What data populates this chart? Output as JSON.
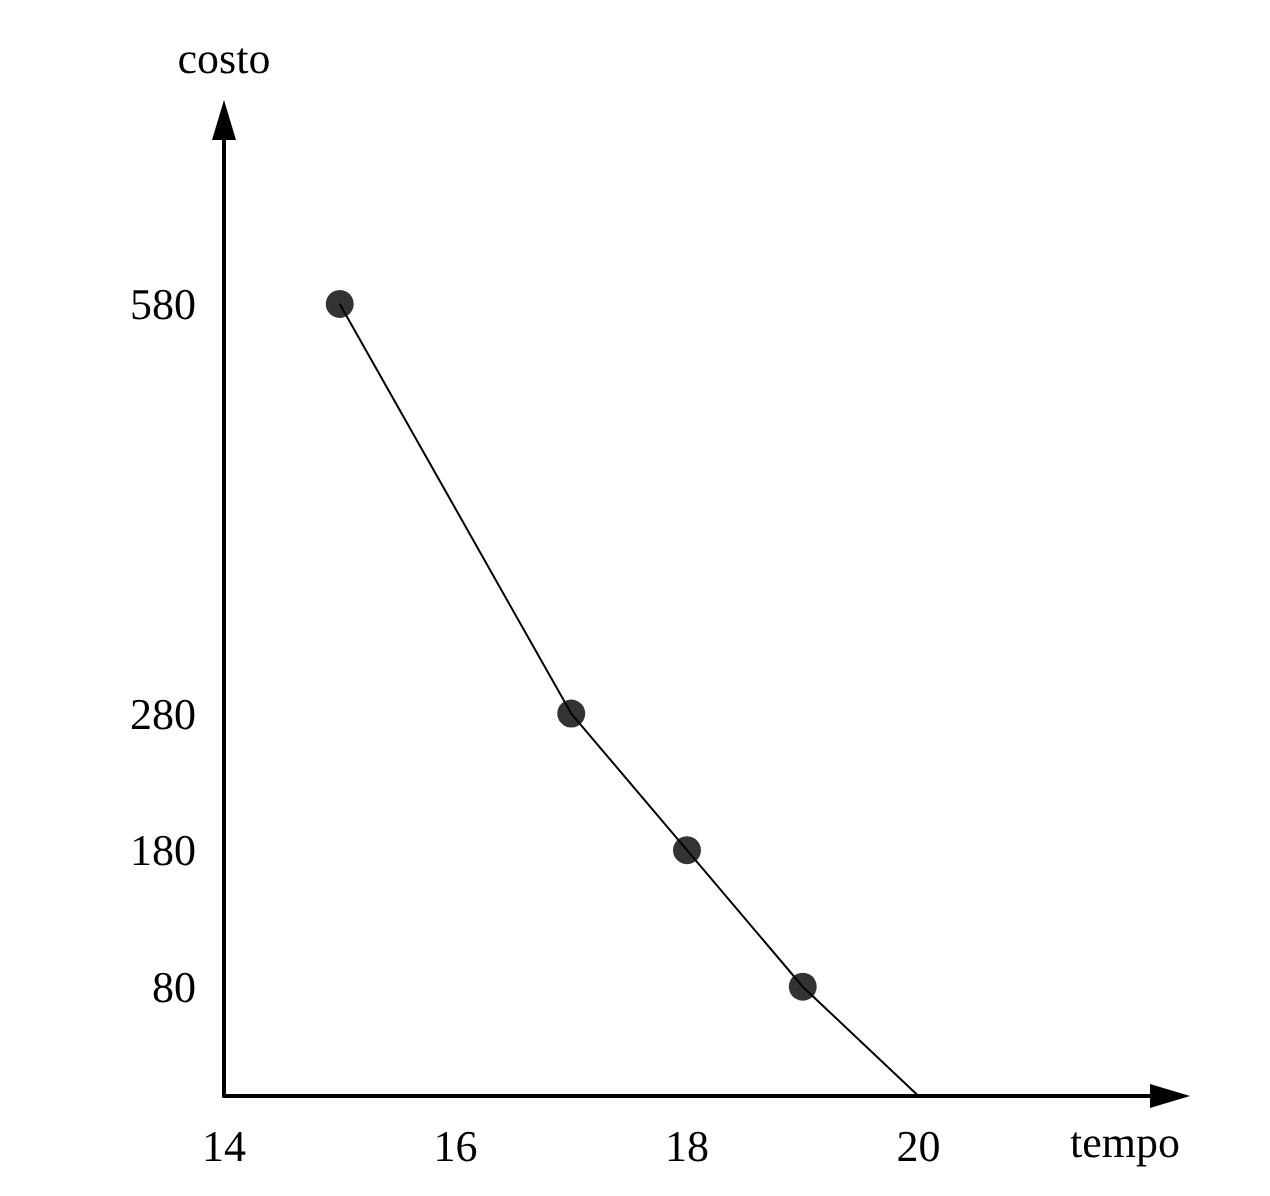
{
  "chart_data": {
    "type": "line",
    "xlabel": "tempo",
    "ylabel": "costo",
    "xlim": [
      14,
      22
    ],
    "xticks": [
      14,
      16,
      18,
      20
    ],
    "ylim": [
      0,
      700
    ],
    "yticks": [
      80,
      180,
      280,
      580
    ],
    "grid": false,
    "series": [
      {
        "color": "#000000",
        "marker": "none",
        "x": [
          15,
          17,
          18,
          19,
          20
        ],
        "values": [
          580,
          280,
          180,
          80,
          0
        ]
      },
      {
        "type": "scatter",
        "color": "#000000",
        "marker": "circle",
        "x": [
          15,
          17,
          18,
          19
        ],
        "values": [
          580,
          280,
          180,
          80
        ]
      }
    ]
  }
}
